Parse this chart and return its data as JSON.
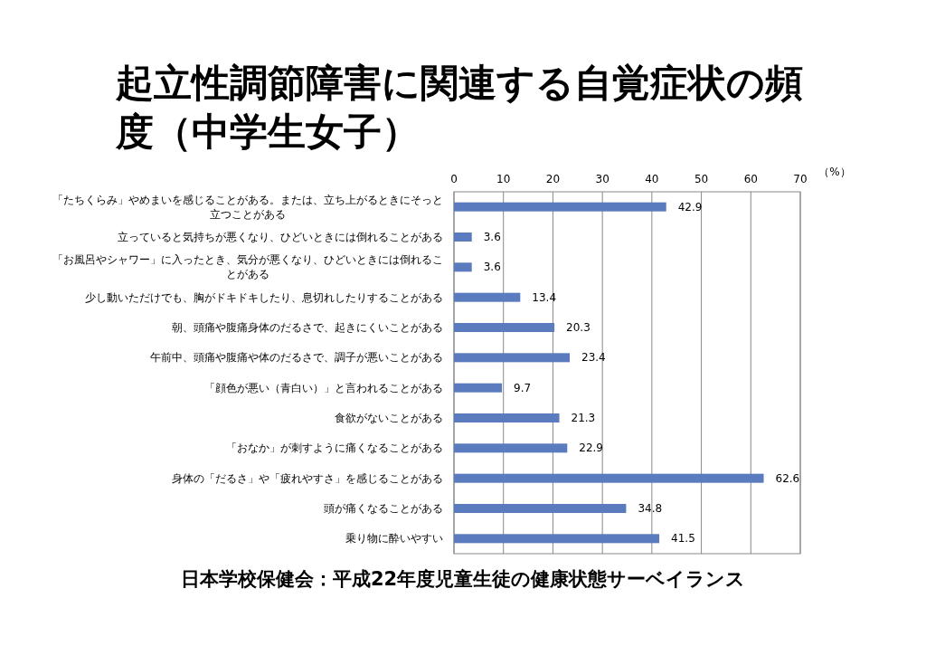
{
  "chart_data": {
    "type": "bar",
    "orientation": "horizontal",
    "title": "起立性調節障害に関連する自覚症状の頻度（中学生女子）",
    "xlabel": "（%）",
    "categories": [
      "「たちくらみ」やめまいを感じることがある。または、立ち上がるときにそっと立つことがある",
      "立っていると気持ちが悪くなり、ひどいときには倒れることがある",
      "「お風呂やシャワー」に入ったとき、気分が悪くなり、ひどいときには倒れることがある",
      "少し動いただけでも、胸がドキドキしたり、息切れしたりすることがある",
      "朝、頭痛や腹痛身体のだるさで、起きにくいことがある",
      "午前中、頭痛や腹痛や体のだるさで、調子が悪いことがある",
      "「顔色が悪い（青白い）」と言われることがある",
      "食欲がないことがある",
      "「おなか」が刺すように痛くなることがある",
      "身体の「だるさ」や「疲れやすさ」を感じることがある",
      "頭が痛くなることがある",
      "乗り物に酔いやすい"
    ],
    "values": [
      42.9,
      3.6,
      3.6,
      13.4,
      20.3,
      23.4,
      9.7,
      21.3,
      22.9,
      62.6,
      34.8,
      41.5
    ],
    "color": "#5a7bbd",
    "xlim": [
      0,
      70
    ],
    "xticks": [
      0,
      10,
      20,
      30,
      40,
      50,
      60,
      70
    ],
    "grid": "x",
    "data_labels": true,
    "annotations": [
      "日本学校保健会：平成22年度児童生徒の健康状態サーベイランス"
    ]
  }
}
